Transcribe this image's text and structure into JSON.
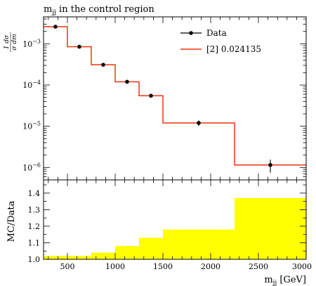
{
  "chart_data": {
    "type": "step",
    "title": "m_jj in the control region",
    "title_base": "m",
    "title_sub": "jj",
    "title_rest": " in the control region",
    "x_axis": {
      "label_base": "m",
      "label_sub": "jj",
      "label_unit": " [GeV]",
      "range": [
        250,
        3000
      ],
      "ticks": [
        500,
        1000,
        1500,
        2000,
        2500,
        3000
      ],
      "tick_labels": [
        "500",
        "1000",
        "1500",
        "2000",
        "2500",
        "3000"
      ]
    },
    "main_panel": {
      "y_label": "1/σ dσ/dm_jj",
      "y_scale": "log",
      "y_range": [
        5e-07,
        0.0045
      ],
      "y_ticks": [
        0.001,
        0.0001,
        1e-05,
        1e-06
      ],
      "y_tick_base": "10",
      "y_tick_exponents": [
        "−3",
        "−4",
        "−5",
        "−6"
      ],
      "legend": {
        "placement": "top-right",
        "entries": [
          {
            "label": "Data",
            "style": "marker",
            "color": "#000000"
          },
          {
            "label": "[2] 0.024135",
            "style": "line",
            "color": "#ee3311"
          }
        ]
      },
      "data": [
        {
          "x": 375,
          "y": 0.0026,
          "yerr": 0.0001
        },
        {
          "x": 625,
          "y": 0.00085,
          "yerr": 3e-05
        },
        {
          "x": 875,
          "y": 0.00031,
          "yerr": 1.5e-05
        },
        {
          "x": 1125,
          "y": 0.00012,
          "yerr": 7e-06
        },
        {
          "x": 1375,
          "y": 5.5e-05,
          "yerr": 4e-06
        },
        {
          "x": 1875,
          "y": 1.2e-05,
          "yerr": 1.8e-06
        },
        {
          "x": 2625,
          "y": 1.15e-06,
          "yerr": 4e-07
        }
      ],
      "mc_bins": [
        {
          "lo": 250,
          "hi": 500,
          "y": 0.0026
        },
        {
          "lo": 500,
          "hi": 750,
          "y": 0.00085
        },
        {
          "lo": 750,
          "hi": 1000,
          "y": 0.00031
        },
        {
          "lo": 1000,
          "hi": 1250,
          "y": 0.00012
        },
        {
          "lo": 1250,
          "hi": 1500,
          "y": 5.5e-05
        },
        {
          "lo": 1500,
          "hi": 2250,
          "y": 1.2e-05
        },
        {
          "lo": 2250,
          "hi": 3000,
          "y": 1.15e-06
        }
      ],
      "mc_color": "#ee3311"
    },
    "ratio_panel": {
      "y_label": "MC/Data",
      "y_range": [
        1.0,
        1.48
      ],
      "y_ticks": [
        1.0,
        1.1,
        1.2,
        1.3,
        1.4
      ],
      "y_tick_labels": [
        "1.0",
        "1.1",
        "1.2",
        "1.3",
        "1.4"
      ],
      "band_color": "#ffff00",
      "band": [
        {
          "lo": 250,
          "hi": 500,
          "y": 1.02
        },
        {
          "lo": 500,
          "hi": 750,
          "y": 1.02
        },
        {
          "lo": 750,
          "hi": 1000,
          "y": 1.04
        },
        {
          "lo": 1000,
          "hi": 1250,
          "y": 1.08
        },
        {
          "lo": 1250,
          "hi": 1500,
          "y": 1.13
        },
        {
          "lo": 1500,
          "hi": 2250,
          "y": 1.18
        },
        {
          "lo": 2250,
          "hi": 3000,
          "y": 1.37
        }
      ]
    }
  }
}
